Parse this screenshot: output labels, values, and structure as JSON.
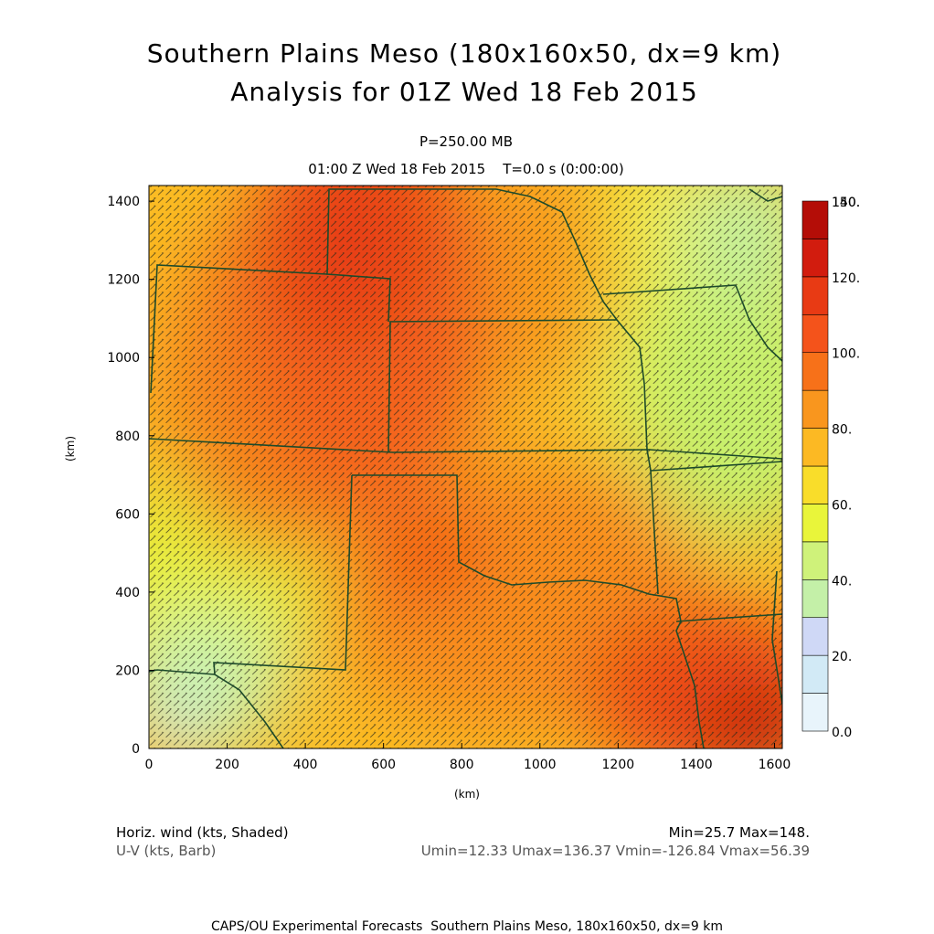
{
  "title": {
    "line1": "Southern Plains Meso (180x160x50, dx=9 km)",
    "line2": "Analysis for 01Z Wed 18 Feb 2015"
  },
  "level_label": "P=250.00 MB",
  "time_label": "01:00 Z Wed 18 Feb 2015    T=0.0 s (0:00:00)",
  "axes": {
    "x_unit": "(km)",
    "y_unit": "(km)",
    "x_range": [
      0,
      1620
    ],
    "y_range": [
      0,
      1440
    ],
    "x_ticks": [
      "0",
      "200",
      "400",
      "600",
      "800",
      "1000",
      "1200",
      "1400",
      "1600"
    ],
    "y_ticks": [
      "0",
      "200",
      "400",
      "600",
      "800",
      "1000",
      "1200",
      "1400"
    ]
  },
  "colorbar": {
    "labels": [
      "0.0",
      "20.",
      "40.",
      "60.",
      "80.",
      "100.",
      "120.",
      "140.",
      "150."
    ],
    "colors": [
      "#e8f4fb",
      "#d2eaf6",
      "#cfd8f6",
      "#c4f0a8",
      "#cff27a",
      "#e9f53a",
      "#f9dd2a",
      "#fcb923",
      "#f9961e",
      "#f77119",
      "#f4531b",
      "#e83a14",
      "#d21c0e",
      "#b40d07"
    ]
  },
  "legend": {
    "shaded": "Horiz. wind (kts, Shaded)",
    "barb": "U-V (kts, Barb)",
    "minmax": "Min=25.7 Max=148.",
    "uv_range": "Umin=12.33 Umax=136.37 Vmin=-126.84 Vmax=56.39"
  },
  "footer": "CAPS/OU Experimental Forecasts  Southern Plains Meso, 180x160x50, dx=9 km",
  "map_colors": {
    "border": "#1d4a2a",
    "barb": "#2b2b1a"
  }
}
